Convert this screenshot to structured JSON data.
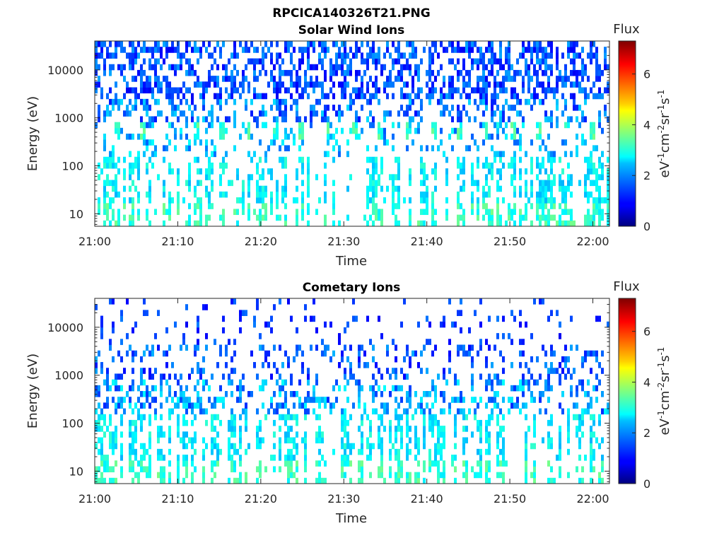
{
  "figure_title": "RPCICA140326T21.PNG",
  "chart_data": [
    {
      "type": "heatmap",
      "title": "Solar Wind Ions",
      "xlabel": "Time",
      "ylabel": "Energy (eV)",
      "x_ticks": [
        "21:00",
        "21:10",
        "21:20",
        "21:30",
        "21:40",
        "21:50",
        "22:00"
      ],
      "x_range": [
        "21:00",
        "22:02"
      ],
      "y_scale": "log",
      "y_ticks": [
        10,
        100,
        1000,
        10000
      ],
      "y_tick_labels": [
        "10",
        "100",
        "1000",
        "10000"
      ],
      "y_range": [
        5.5,
        40000
      ],
      "colorbar": {
        "label": "Flux",
        "units": "eV-1cm-2sr-1s-1",
        "range": [
          0,
          7.3
        ],
        "ticks": [
          0,
          2,
          4,
          6
        ],
        "tick_labels": [
          "0",
          "2",
          "4",
          "6"
        ],
        "colormap": "jet"
      },
      "pattern": "dense noisy flux at high energies; periodic enhanced bands near 600 eV about every 3.2 minutes; sparse low-energy streaks"
    },
    {
      "type": "heatmap",
      "title": "Cometary Ions",
      "xlabel": "Time",
      "ylabel": "Energy (eV)",
      "x_ticks": [
        "21:00",
        "21:10",
        "21:20",
        "21:30",
        "21:40",
        "21:50",
        "22:00"
      ],
      "x_range": [
        "21:00",
        "22:02"
      ],
      "y_scale": "log",
      "y_ticks": [
        10,
        100,
        1000,
        10000
      ],
      "y_tick_labels": [
        "10",
        "100",
        "1000",
        "10000"
      ],
      "y_range": [
        5.5,
        40000
      ],
      "colorbar": {
        "label": "Flux",
        "units": "eV-1cm-2sr-1s-1",
        "range": [
          0,
          7.3
        ],
        "ticks": [
          0,
          2,
          4,
          6
        ],
        "tick_labels": [
          "0",
          "2",
          "4",
          "6"
        ],
        "colormap": "jet"
      },
      "pattern": "sparse scattered flux at high energies, denser below 1000 eV; low-energy streaks"
    }
  ]
}
